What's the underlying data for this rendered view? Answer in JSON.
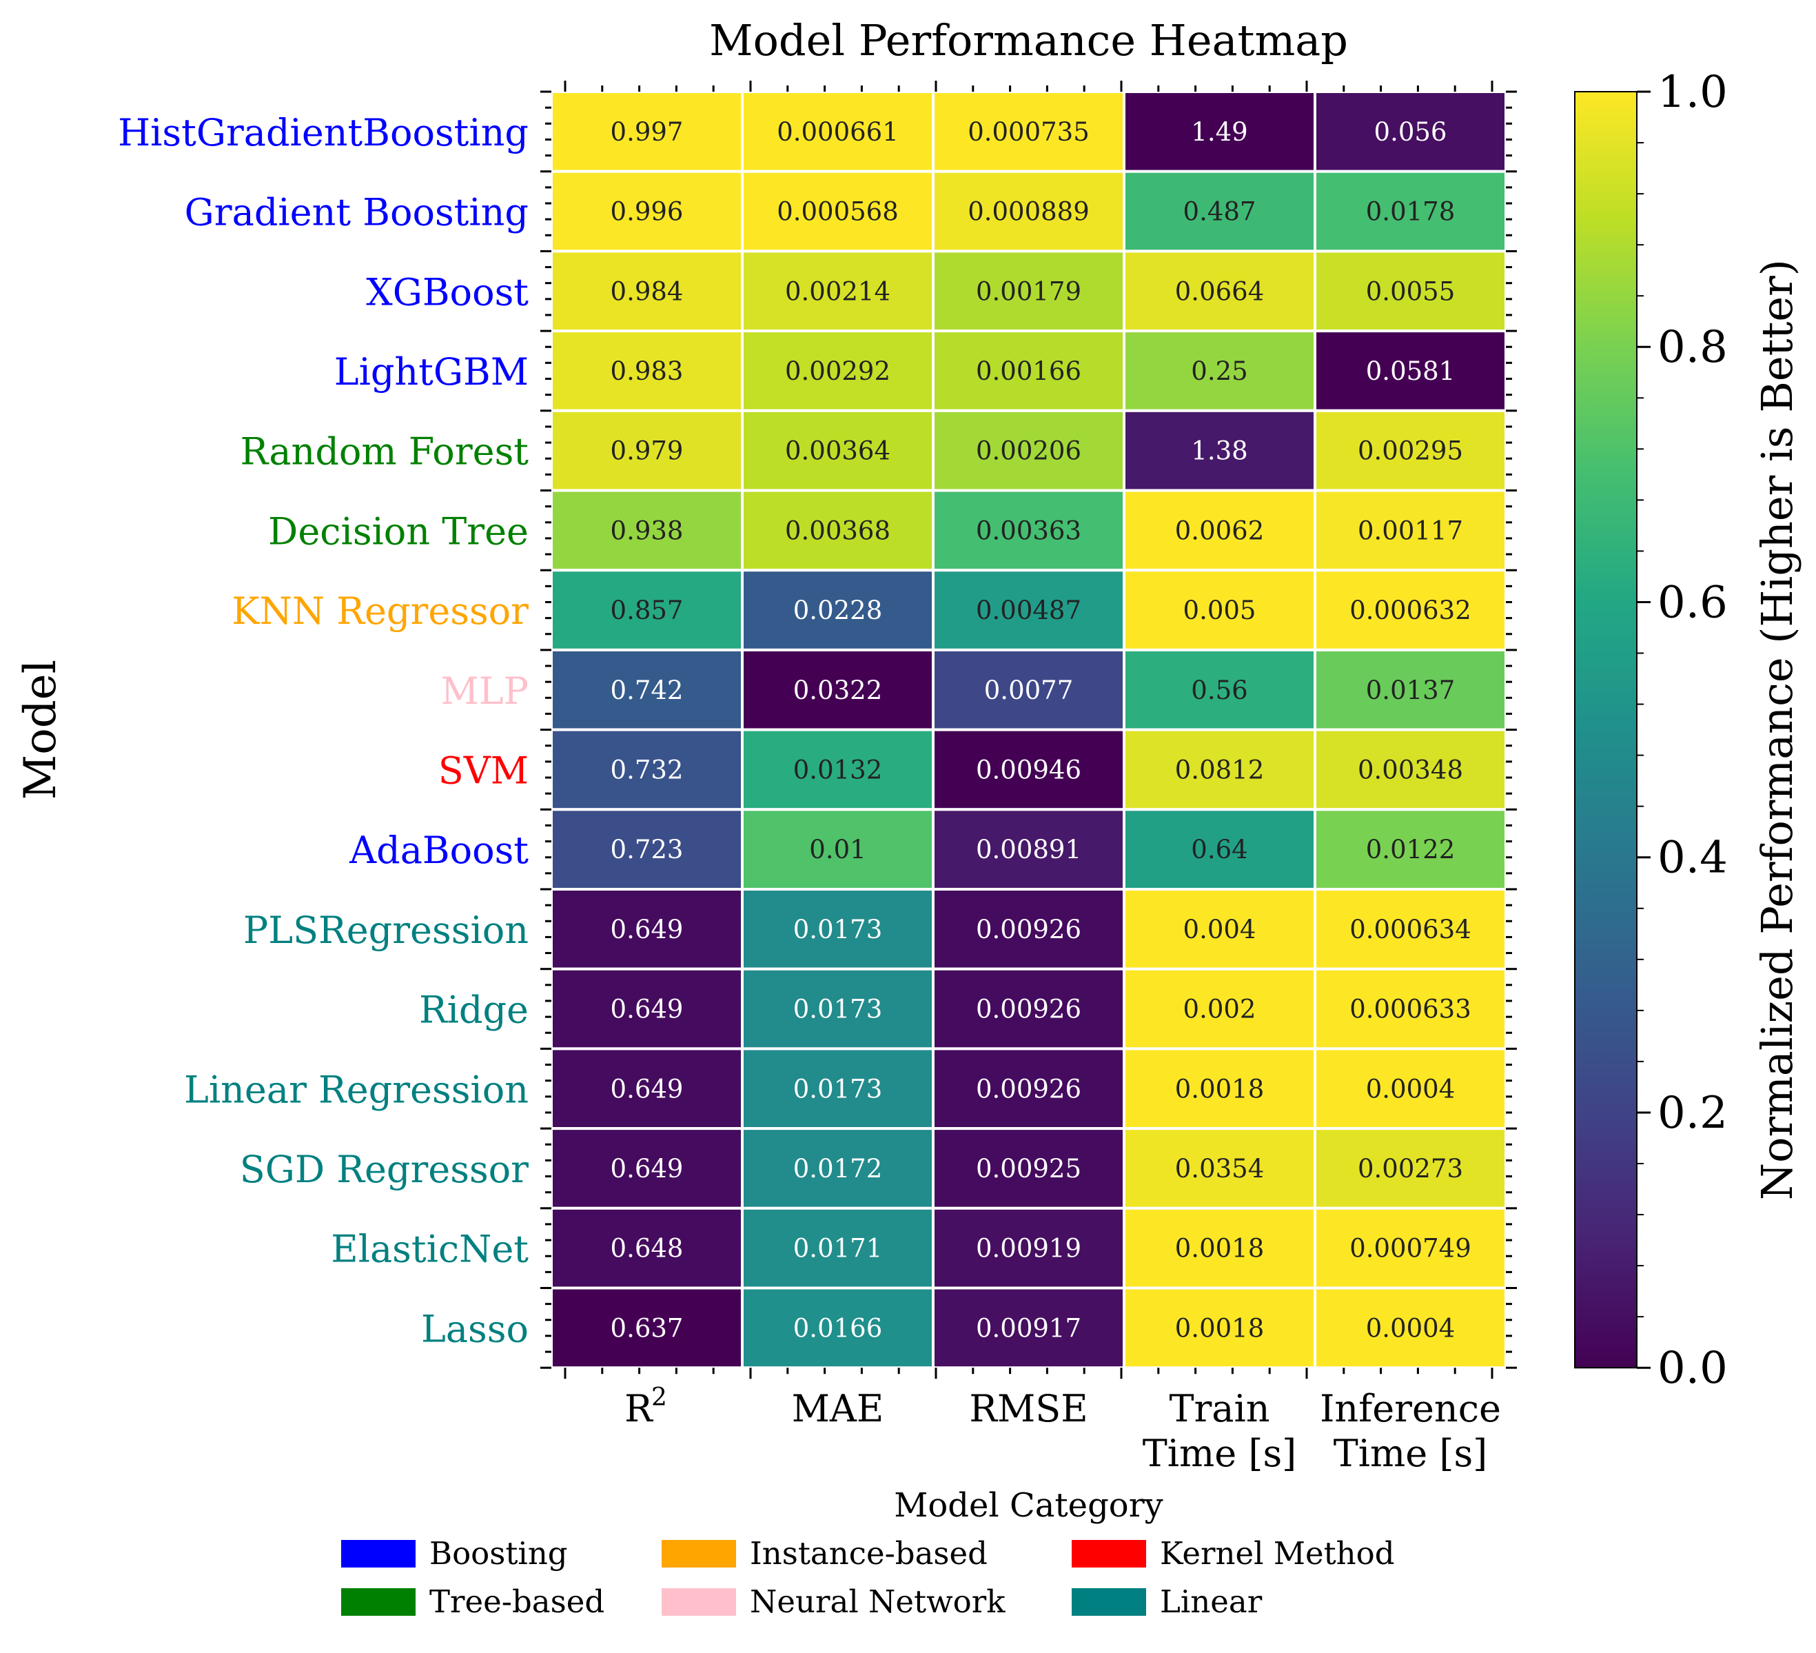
{
  "chart_data": {
    "type": "heatmap",
    "title": "Model Performance Heatmap",
    "ylabel": "Model",
    "columns": [
      {
        "label": "R",
        "sup": "2"
      },
      {
        "label": "MAE"
      },
      {
        "label": "RMSE"
      },
      {
        "label": "Train",
        "label2": "Time [s]"
      },
      {
        "label": "Inference",
        "label2": "Time [s]"
      }
    ],
    "rows": [
      {
        "model": "HistGradientBoosting",
        "category": "Boosting",
        "values": [
          "0.997",
          "0.000661",
          "0.000735",
          "1.49",
          "0.056"
        ],
        "scores": [
          1.0,
          1.0,
          1.0,
          0.0,
          0.04
        ]
      },
      {
        "model": "Gradient Boosting",
        "category": "Boosting",
        "values": [
          "0.996",
          "0.000568",
          "0.000889",
          "0.487",
          "0.0178"
        ],
        "scores": [
          0.997,
          1.0,
          0.98,
          0.68,
          0.7
        ]
      },
      {
        "model": "XGBoost",
        "category": "Boosting",
        "values": [
          "0.984",
          "0.00214",
          "0.00179",
          "0.0664",
          "0.0055"
        ],
        "scores": [
          0.97,
          0.94,
          0.88,
          0.96,
          0.92
        ]
      },
      {
        "model": "LightGBM",
        "category": "Boosting",
        "values": [
          "0.983",
          "0.00292",
          "0.00166",
          "0.25",
          "0.0581"
        ],
        "scores": [
          0.965,
          0.91,
          0.89,
          0.84,
          0.0
        ]
      },
      {
        "model": "Random Forest",
        "category": "Tree-based",
        "values": [
          "0.979",
          "0.00364",
          "0.00206",
          "1.38",
          "0.00295"
        ],
        "scores": [
          0.955,
          0.9,
          0.86,
          0.07,
          0.96
        ]
      },
      {
        "model": "Decision Tree",
        "category": "Tree-based",
        "values": [
          "0.938",
          "0.00368",
          "0.00363",
          "0.0062",
          "0.00117"
        ],
        "scores": [
          0.84,
          0.9,
          0.7,
          1.0,
          0.99
        ]
      },
      {
        "model": "KNN Regressor",
        "category": "Instance-based",
        "values": [
          "0.857",
          "0.0228",
          "0.00487",
          "0.005",
          "0.000632"
        ],
        "scores": [
          0.61,
          0.29,
          0.55,
          1.0,
          1.0
        ]
      },
      {
        "model": "MLP",
        "category": "Neural Network",
        "values": [
          "0.742",
          "0.0322",
          "0.0077",
          "0.56",
          "0.0137"
        ],
        "scores": [
          0.29,
          0.0,
          0.22,
          0.63,
          0.77
        ]
      },
      {
        "model": "SVM",
        "category": "Kernel Method",
        "values": [
          "0.732",
          "0.0132",
          "0.00946",
          "0.0812",
          "0.00348"
        ],
        "scores": [
          0.26,
          0.62,
          0.0,
          0.95,
          0.94
        ]
      },
      {
        "model": "AdaBoost",
        "category": "Boosting",
        "values": [
          "0.723",
          "0.01",
          "0.00891",
          "0.64",
          "0.0122"
        ],
        "scores": [
          0.24,
          0.72,
          0.07,
          0.57,
          0.8
        ]
      },
      {
        "model": "PLSRegression",
        "category": "Linear",
        "values": [
          "0.649",
          "0.0173",
          "0.00926",
          "0.004",
          "0.000634"
        ],
        "scores": [
          0.03,
          0.48,
          0.03,
          1.0,
          1.0
        ]
      },
      {
        "model": "Ridge",
        "category": "Linear",
        "values": [
          "0.649",
          "0.0173",
          "0.00926",
          "0.002",
          "0.000633"
        ],
        "scores": [
          0.03,
          0.48,
          0.03,
          1.0,
          1.0
        ]
      },
      {
        "model": "Linear Regression",
        "category": "Linear",
        "values": [
          "0.649",
          "0.0173",
          "0.00926",
          "0.0018",
          "0.0004"
        ],
        "scores": [
          0.03,
          0.48,
          0.03,
          1.0,
          1.0
        ]
      },
      {
        "model": "SGD Regressor",
        "category": "Linear",
        "values": [
          "0.649",
          "0.0172",
          "0.00925",
          "0.0354",
          "0.00273"
        ],
        "scores": [
          0.03,
          0.48,
          0.03,
          0.98,
          0.96
        ]
      },
      {
        "model": "ElasticNet",
        "category": "Linear",
        "values": [
          "0.648",
          "0.0171",
          "0.00919",
          "0.0018",
          "0.000749"
        ],
        "scores": [
          0.03,
          0.49,
          0.04,
          1.0,
          1.0
        ]
      },
      {
        "model": "Lasso",
        "category": "Linear",
        "values": [
          "0.637",
          "0.0166",
          "0.00917",
          "0.0018",
          "0.0004"
        ],
        "scores": [
          0.0,
          0.5,
          0.04,
          1.0,
          1.0
        ]
      }
    ],
    "colormap": "viridis",
    "colorbar": {
      "label": "Normalized Performance (Higher is Better)",
      "range": [
        0.0,
        1.0
      ],
      "ticks": [
        "0.0",
        "0.2",
        "0.4",
        "0.6",
        "0.8",
        "1.0"
      ]
    },
    "legend": {
      "title": "Model Category",
      "placement": "bottom-center",
      "items": [
        {
          "label": "Boosting",
          "color": "#0000ff"
        },
        {
          "label": "Tree-based",
          "color": "#008000"
        },
        {
          "label": "Instance-based",
          "color": "#ffa500"
        },
        {
          "label": "Neural Network",
          "color": "#ffc0cb"
        },
        {
          "label": "Kernel Method",
          "color": "#ff0000"
        },
        {
          "label": "Linear",
          "color": "#008080"
        }
      ]
    }
  }
}
